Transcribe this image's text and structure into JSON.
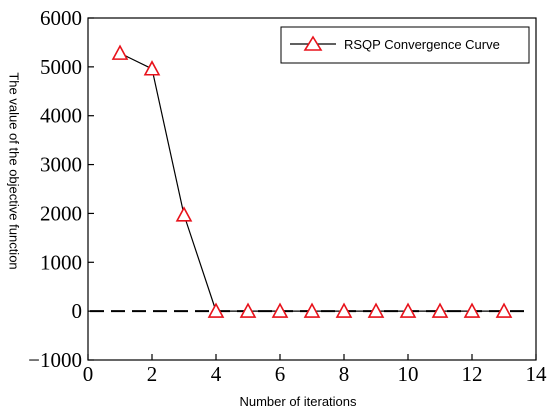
{
  "chart_data": {
    "type": "line",
    "xlabel": "Number of iterations",
    "ylabel": "The value of the objective function",
    "xlim": [
      0,
      14
    ],
    "ylim": [
      -1000,
      6000
    ],
    "x_ticks": [
      0,
      2,
      4,
      6,
      8,
      10,
      12,
      14
    ],
    "y_ticks": [
      -1000,
      0,
      1000,
      2000,
      3000,
      4000,
      5000,
      6000
    ],
    "x_tick_labels": [
      "0",
      "2",
      "4",
      "6",
      "8",
      "10",
      "12",
      "14"
    ],
    "y_tick_labels": [
      "−1000",
      "0",
      "1000",
      "2000",
      "3000",
      "4000",
      "5000",
      "6000"
    ],
    "grid": false,
    "legend_position": "top-right",
    "reference_line": {
      "y": 0,
      "style": "dashed",
      "color": "#000000"
    },
    "series": [
      {
        "name": "RSQP Convergence Curve",
        "color": "#e8121b",
        "line_color": "#000000",
        "marker": "triangle",
        "x": [
          1,
          2,
          3,
          4,
          5,
          6,
          7,
          8,
          9,
          10,
          11,
          12,
          13
        ],
        "values": [
          5280,
          4960,
          1970,
          0,
          0,
          0,
          0,
          0,
          0,
          0,
          0,
          0,
          0
        ]
      }
    ]
  }
}
